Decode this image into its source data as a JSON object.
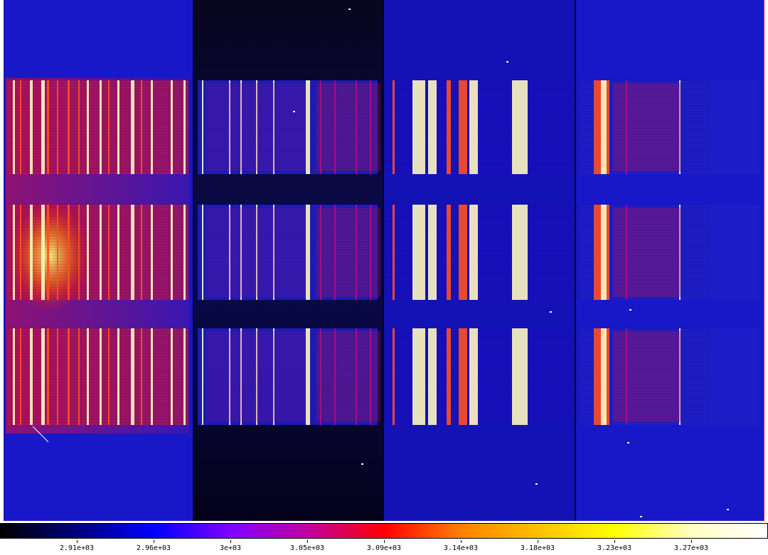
{
  "colorbar": {
    "colormap_name": "heat",
    "stops": [
      "#000000",
      "#000080",
      "#0000ff",
      "#8000ff",
      "#c000a0",
      "#ff0000",
      "#ff8000",
      "#ffc000",
      "#ffff00",
      "#ffffc0",
      "#ffffff"
    ],
    "ticks": [
      {
        "label": "2.91e+03",
        "frac": 0.1
      },
      {
        "label": "2.96e+03",
        "frac": 0.2
      },
      {
        "label": "3e+03",
        "frac": 0.3
      },
      {
        "label": "3.05e+03",
        "frac": 0.4
      },
      {
        "label": "3.09e+03",
        "frac": 0.5
      },
      {
        "label": "3.14e+03",
        "frac": 0.6
      },
      {
        "label": "3.18e+03",
        "frac": 0.7
      },
      {
        "label": "3.23e+03",
        "frac": 0.8
      },
      {
        "label": "3.27e+03",
        "frac": 0.9
      }
    ]
  },
  "image": {
    "background_color": "#1818c8",
    "dark_panel_color": "#05031a",
    "stripe_bright": "#fff8c0",
    "stripe_mid": "#ff5020",
    "stripe_low": "#a010a0"
  }
}
